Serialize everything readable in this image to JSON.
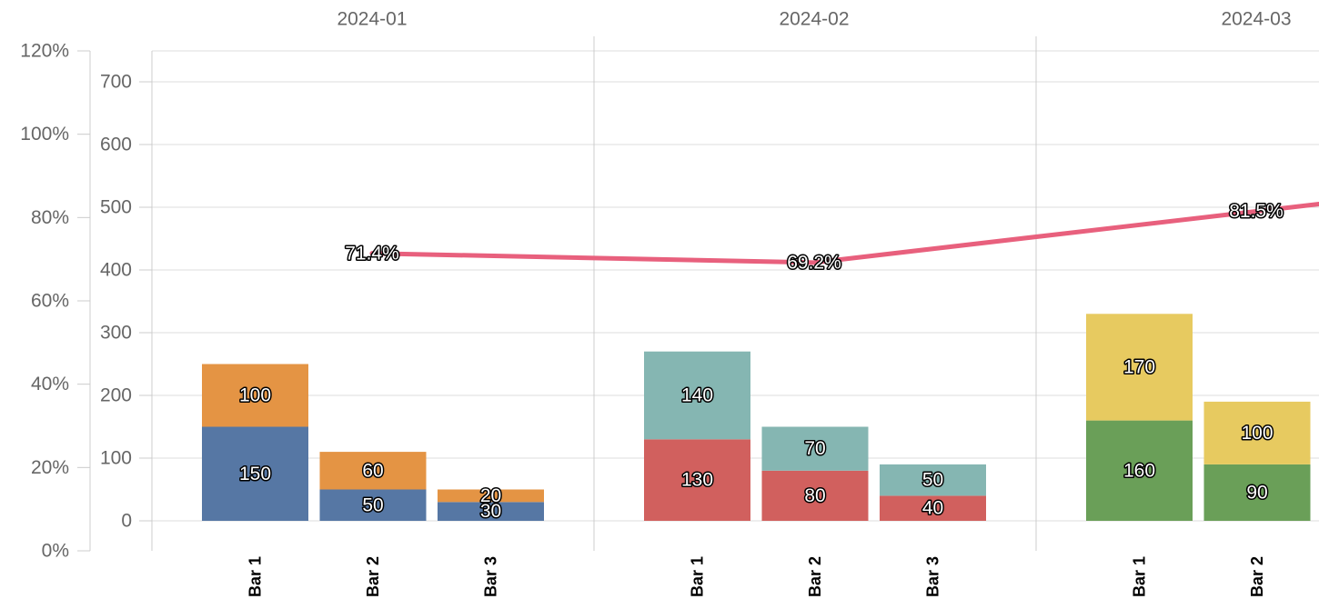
{
  "chart_data": {
    "type": "bar",
    "subtype": "stacked-grouped-bar-with-line",
    "groups": [
      "2024-01",
      "2024-02",
      "2024-03"
    ],
    "bars": [
      {
        "group": "2024-01",
        "label": "Bar 1",
        "segments": [
          {
            "value": 150,
            "color": "#5677a4"
          },
          {
            "value": 100,
            "color": "#e49444"
          }
        ]
      },
      {
        "group": "2024-01",
        "label": "Bar 2",
        "segments": [
          {
            "value": 50,
            "color": "#5677a4"
          },
          {
            "value": 60,
            "color": "#e49444"
          }
        ]
      },
      {
        "group": "2024-01",
        "label": "Bar 3",
        "segments": [
          {
            "value": 30,
            "color": "#5677a4"
          },
          {
            "value": 20,
            "color": "#e49444"
          }
        ]
      },
      {
        "group": "2024-02",
        "label": "Bar 1",
        "segments": [
          {
            "value": 130,
            "color": "#d1605e"
          },
          {
            "value": 140,
            "color": "#85b6b2"
          }
        ]
      },
      {
        "group": "2024-02",
        "label": "Bar 2",
        "segments": [
          {
            "value": 80,
            "color": "#d1605e"
          },
          {
            "value": 70,
            "color": "#85b6b2"
          }
        ]
      },
      {
        "group": "2024-02",
        "label": "Bar 3",
        "segments": [
          {
            "value": 40,
            "color": "#d1605e"
          },
          {
            "value": 50,
            "color": "#85b6b2"
          }
        ]
      },
      {
        "group": "2024-03",
        "label": "Bar 1",
        "segments": [
          {
            "value": 160,
            "color": "#6a9f58"
          },
          {
            "value": 170,
            "color": "#e7ca60"
          }
        ]
      },
      {
        "group": "2024-03",
        "label": "Bar 2",
        "segments": [
          {
            "value": 90,
            "color": "#6a9f58"
          },
          {
            "value": 100,
            "color": "#e7ca60"
          }
        ]
      }
    ],
    "line": {
      "color": "#e8607d",
      "axis": "left",
      "points": [
        {
          "group": "2024-01",
          "value": 71.4,
          "label": "71.4%"
        },
        {
          "group": "2024-02",
          "value": 69.2,
          "label": "69.2%"
        },
        {
          "group": "2024-03",
          "value": 81.5,
          "label": "81.5%"
        }
      ]
    },
    "y_left": {
      "ticks": [
        "0%",
        "20%",
        "40%",
        "60%",
        "80%",
        "100%",
        "120%"
      ],
      "range": [
        0,
        120
      ]
    },
    "y_right": {
      "ticks": [
        "0",
        "100",
        "200",
        "300",
        "400",
        "500",
        "600",
        "700"
      ],
      "range": [
        -50,
        750
      ]
    },
    "grid": true,
    "legend": "none"
  }
}
